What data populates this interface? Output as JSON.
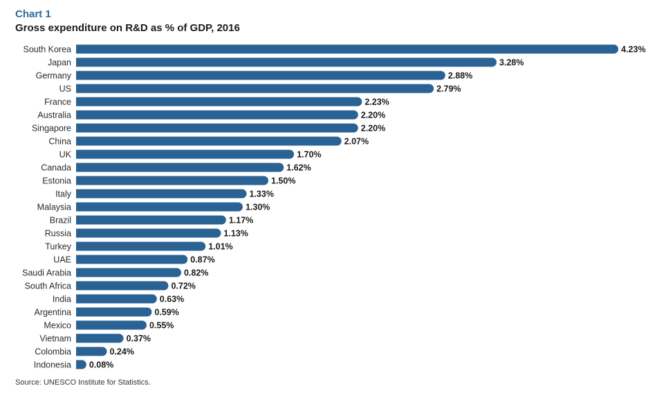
{
  "chart_label": "Chart 1",
  "source": "Source: UNESCO Institute for Statistics.",
  "colors": {
    "bar": "#2b6294",
    "accent": "#2b6a9c"
  },
  "chart_data": {
    "type": "bar",
    "orientation": "horizontal",
    "title": "Gross expenditure on R&D as % of GDP, 2016",
    "categories": [
      "South Korea",
      "Japan",
      "Germany",
      "US",
      "France",
      "Australia",
      "Singapore",
      "China",
      "UK",
      "Canada",
      "Estonia",
      "Italy",
      "Malaysia",
      "Brazil",
      "Russia",
      "Turkey",
      "UAE",
      "Saudi Arabia",
      "South Africa",
      "India",
      "Argentina",
      "Mexico",
      "Vietnam",
      "Colombia",
      "Indonesia"
    ],
    "values": [
      4.23,
      3.28,
      2.88,
      2.79,
      2.23,
      2.2,
      2.2,
      2.07,
      1.7,
      1.62,
      1.5,
      1.33,
      1.3,
      1.17,
      1.13,
      1.01,
      0.87,
      0.82,
      0.72,
      0.63,
      0.59,
      0.55,
      0.37,
      0.24,
      0.08
    ],
    "value_labels": [
      "4.23%",
      "3.28%",
      "2.88%",
      "2.79%",
      "2.23%",
      "2.20%",
      "2.20%",
      "2.07%",
      "1.70%",
      "1.62%",
      "1.50%",
      "1.33%",
      "1.30%",
      "1.17%",
      "1.13%",
      "1.01%",
      "0.87%",
      "0.82%",
      "0.72%",
      "0.63%",
      "0.59%",
      "0.55%",
      "0.37%",
      "0.24%",
      "0.08%"
    ],
    "xlabel": "",
    "ylabel": "",
    "xlim": [
      0,
      4.23
    ],
    "grid": false,
    "legend": "none"
  }
}
